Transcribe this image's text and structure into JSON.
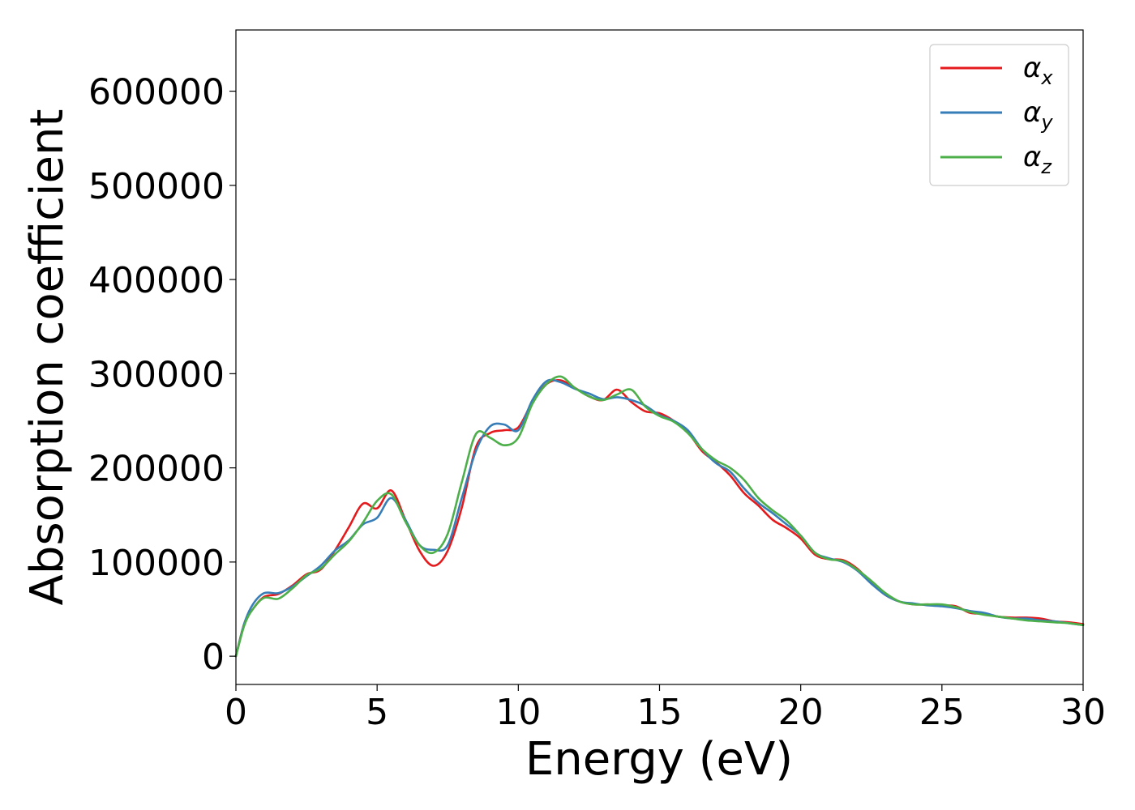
{
  "chart_data": {
    "type": "line",
    "title": "",
    "xlabel": "Energy (eV)",
    "ylabel": "Absorption coefficient",
    "xlim": [
      0,
      30
    ],
    "ylim": [
      -30000,
      665000
    ],
    "xticks": [
      0,
      5,
      10,
      15,
      20,
      25,
      30
    ],
    "xtick_labels": [
      "0",
      "5",
      "10",
      "15",
      "20",
      "25",
      "30"
    ],
    "yticks": [
      0,
      100000,
      200000,
      300000,
      400000,
      500000,
      600000
    ],
    "ytick_labels": [
      "0",
      "100000",
      "200000",
      "300000",
      "400000",
      "500000",
      "600000"
    ],
    "grid": false,
    "legend_position": "top-right",
    "x": [
      0,
      0.3,
      0.6,
      1.0,
      1.5,
      2.0,
      2.5,
      3.0,
      3.5,
      4.0,
      4.5,
      5.0,
      5.5,
      6.0,
      6.5,
      7.0,
      7.5,
      8.0,
      8.5,
      9.0,
      9.5,
      10.0,
      10.5,
      11.0,
      11.5,
      12.0,
      12.5,
      13.0,
      13.5,
      14.0,
      14.5,
      15.0,
      15.5,
      16.0,
      16.5,
      17.0,
      17.5,
      18.0,
      18.5,
      19.0,
      19.5,
      20.0,
      20.5,
      21.0,
      21.5,
      22.0,
      22.5,
      23.0,
      23.5,
      24.0,
      24.5,
      25.0,
      25.5,
      26.0,
      26.5,
      27.0,
      27.5,
      28.0,
      28.5,
      29.0,
      29.5,
      30.0
    ],
    "series": [
      {
        "name_base": "α",
        "name_sub": "x",
        "color": "#e41a1c",
        "values": [
          0,
          35000,
          50000,
          63000,
          66000,
          75000,
          87000,
          92000,
          112000,
          137000,
          162000,
          157000,
          176000,
          145000,
          112000,
          96000,
          112000,
          158000,
          222000,
          237000,
          240000,
          243000,
          270000,
          289000,
          293000,
          285000,
          276000,
          272000,
          283000,
          270000,
          260000,
          258000,
          250000,
          238000,
          218000,
          206000,
          192000,
          173000,
          160000,
          145000,
          136000,
          125000,
          108000,
          103000,
          102000,
          93000,
          78000,
          65000,
          58000,
          55000,
          55000,
          54000,
          53000,
          46000,
          45000,
          42000,
          41000,
          41000,
          40000,
          37000,
          36000,
          34000
        ]
      },
      {
        "name_base": "α",
        "name_sub": "y",
        "color": "#377eb8",
        "values": [
          0,
          35000,
          55000,
          67000,
          67000,
          74000,
          85000,
          96000,
          112000,
          123000,
          140000,
          147000,
          168000,
          145000,
          118000,
          113000,
          118000,
          168000,
          218000,
          244000,
          246000,
          240000,
          272000,
          292000,
          291000,
          284000,
          279000,
          273000,
          275000,
          272000,
          266000,
          256000,
          250000,
          240000,
          220000,
          205000,
          196000,
          178000,
          163000,
          152000,
          140000,
          128000,
          110000,
          104000,
          100000,
          91000,
          77000,
          65000,
          58000,
          56000,
          54000,
          53000,
          51000,
          48000,
          46000,
          42000,
          40000,
          40000,
          38000,
          37000,
          35000,
          33000
        ]
      },
      {
        "name_base": "α",
        "name_sub": "z",
        "color": "#4daf4a",
        "values": [
          0,
          33000,
          50000,
          62000,
          61000,
          72000,
          86000,
          93000,
          108000,
          122000,
          142000,
          165000,
          172000,
          143000,
          118000,
          110000,
          130000,
          185000,
          236000,
          232000,
          224000,
          232000,
          268000,
          289000,
          297000,
          285000,
          276000,
          272000,
          278000,
          283000,
          265000,
          255000,
          249000,
          237000,
          220000,
          208000,
          200000,
          187000,
          168000,
          155000,
          144000,
          128000,
          110000,
          103000,
          101000,
          92000,
          80000,
          67000,
          58000,
          55000,
          55000,
          55000,
          52000,
          47000,
          44000,
          42000,
          40000,
          38000,
          37000,
          36000,
          35000,
          33000
        ]
      }
    ]
  }
}
